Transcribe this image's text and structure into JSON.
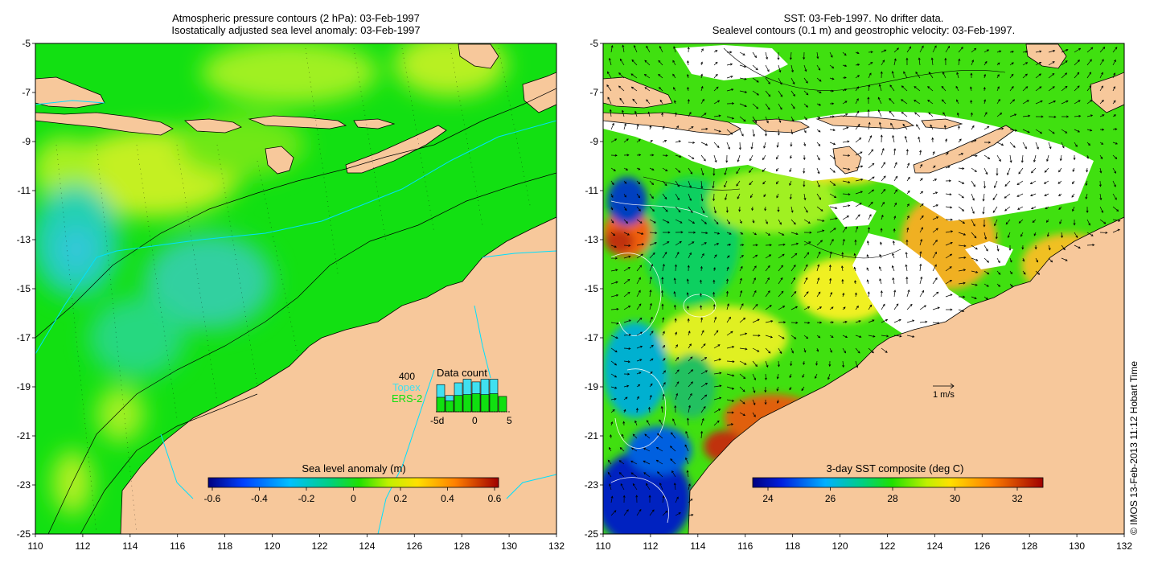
{
  "left_panel": {
    "title_line1": "Atmospheric pressure contours (2 hPa): 03-Feb-1997",
    "title_line2": "Isostatically adjusted sea level anomaly: 03-Feb-1997",
    "colorbar": {
      "title": "Sea level anomaly (m)",
      "ticks": [
        "-0.6",
        "-0.4",
        "-0.2",
        "0",
        "0.2",
        "0.4",
        "0.6"
      ]
    },
    "data_count": {
      "title": "Data count",
      "max_label": "400",
      "series_topex": "Topex",
      "series_ers2": "ERS-2",
      "x_ticks": [
        "-5d",
        "0",
        "5"
      ],
      "topex_color": "#40e0f0",
      "ers2_color": "#10e010",
      "topex_values": [
        300,
        180,
        320,
        360,
        330,
        360,
        360,
        0
      ],
      "ers2_values": [
        160,
        120,
        180,
        190,
        200,
        190,
        200,
        170
      ]
    }
  },
  "right_panel": {
    "title_line1": "SST: 03-Feb-1997. No drifter data.",
    "title_line2": "Sealevel contours (0.1 m) and geostrophic velocity: 03-Feb-1997.",
    "colorbar": {
      "title": "3-day SST composite (deg C)",
      "ticks": [
        "24",
        "26",
        "28",
        "30",
        "32"
      ]
    },
    "velocity_scale_label": "1 m/s"
  },
  "axes": {
    "lon_ticks": [
      "110",
      "112",
      "114",
      "116",
      "118",
      "120",
      "122",
      "124",
      "126",
      "128",
      "130",
      "132"
    ],
    "lat_ticks": [
      "-5",
      "-7",
      "-9",
      "-11",
      "-13",
      "-15",
      "-17",
      "-19",
      "-21",
      "-23",
      "-25"
    ]
  },
  "credit": "© IMOS 13-Feb-2013 11:12 Hobart Time",
  "colors": {
    "land": "#f7c89b",
    "ocean_mid": "#10e010",
    "ocean_high": "#c0f020",
    "ocean_low": "#20d0a0",
    "cloud": "#ffffff"
  }
}
